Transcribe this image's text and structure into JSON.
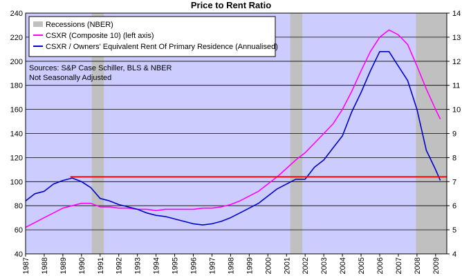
{
  "chart_data": {
    "type": "line",
    "title": "Price to Rent Ratio",
    "x_range": [
      1987,
      2009.6
    ],
    "x_ticks": [
      "1987",
      "1988",
      "1989",
      "1990",
      "1991",
      "1992",
      "1993",
      "1994",
      "1995",
      "1996",
      "1997",
      "1998",
      "1999",
      "2000",
      "2001",
      "2002",
      "2003",
      "2004",
      "2005",
      "2006",
      "2007",
      "2008",
      "2009"
    ],
    "left_axis": {
      "min": 40,
      "max": 240,
      "step": 20,
      "ticks": [
        "40",
        "60",
        "80",
        "100",
        "120",
        "140",
        "160",
        "180",
        "200",
        "220",
        "240"
      ]
    },
    "right_axis": {
      "min": 4,
      "max": 14,
      "step": 1,
      "ticks": [
        "4",
        "5",
        "6",
        "7",
        "8",
        "9",
        "10",
        "11",
        "12",
        "13",
        "14"
      ]
    },
    "recessions": [
      {
        "start": 1990.55,
        "end": 1991.2
      },
      {
        "start": 2001.2,
        "end": 2001.85
      },
      {
        "start": 2007.95,
        "end": 2009.6
      }
    ],
    "reference_line": {
      "value": 104,
      "axis": "left",
      "x_start": 1989.4,
      "x_end": 2009.6,
      "color": "#ff0000"
    },
    "series": [
      {
        "name": "CSXR (Composite 10) (left axis)",
        "color": "#ff00ff",
        "axis": "left",
        "points": [
          [
            1987.0,
            62
          ],
          [
            1987.5,
            66
          ],
          [
            1988.0,
            70
          ],
          [
            1988.5,
            74
          ],
          [
            1989.0,
            78
          ],
          [
            1989.5,
            80
          ],
          [
            1990.0,
            82
          ],
          [
            1990.5,
            82
          ],
          [
            1991.0,
            79
          ],
          [
            1991.5,
            79
          ],
          [
            1992.0,
            78
          ],
          [
            1992.5,
            78
          ],
          [
            1993.0,
            77
          ],
          [
            1993.5,
            77
          ],
          [
            1994.0,
            76
          ],
          [
            1994.5,
            77
          ],
          [
            1995.0,
            77
          ],
          [
            1995.5,
            77
          ],
          [
            1996.0,
            77
          ],
          [
            1996.5,
            78
          ],
          [
            1997.0,
            78
          ],
          [
            1997.5,
            79
          ],
          [
            1998.0,
            81
          ],
          [
            1998.5,
            84
          ],
          [
            1999.0,
            88
          ],
          [
            1999.5,
            92
          ],
          [
            2000.0,
            98
          ],
          [
            2000.5,
            104
          ],
          [
            2001.0,
            111
          ],
          [
            2001.5,
            118
          ],
          [
            2002.0,
            124
          ],
          [
            2002.5,
            132
          ],
          [
            2003.0,
            140
          ],
          [
            2003.5,
            148
          ],
          [
            2004.0,
            160
          ],
          [
            2004.5,
            175
          ],
          [
            2005.0,
            192
          ],
          [
            2005.5,
            208
          ],
          [
            2006.0,
            220
          ],
          [
            2006.5,
            226
          ],
          [
            2007.0,
            222
          ],
          [
            2007.5,
            214
          ],
          [
            2008.0,
            196
          ],
          [
            2008.5,
            177
          ],
          [
            2009.0,
            160
          ],
          [
            2009.25,
            152
          ]
        ]
      },
      {
        "name": "CSXR / Owners' Equivalent Rent Of Primary Residence (Annualised)",
        "color": "#0000cc",
        "axis": "right",
        "points": [
          [
            1987.0,
            6.2
          ],
          [
            1987.5,
            6.5
          ],
          [
            1988.0,
            6.6
          ],
          [
            1988.5,
            6.9
          ],
          [
            1989.0,
            7.05
          ],
          [
            1989.5,
            7.15
          ],
          [
            1990.0,
            7.0
          ],
          [
            1990.5,
            6.75
          ],
          [
            1991.0,
            6.3
          ],
          [
            1991.5,
            6.2
          ],
          [
            1992.0,
            6.05
          ],
          [
            1992.5,
            5.95
          ],
          [
            1993.0,
            5.85
          ],
          [
            1993.5,
            5.7
          ],
          [
            1994.0,
            5.6
          ],
          [
            1994.5,
            5.55
          ],
          [
            1995.0,
            5.45
          ],
          [
            1995.5,
            5.35
          ],
          [
            1996.0,
            5.25
          ],
          [
            1996.5,
            5.2
          ],
          [
            1997.0,
            5.25
          ],
          [
            1997.5,
            5.35
          ],
          [
            1998.0,
            5.5
          ],
          [
            1998.5,
            5.7
          ],
          [
            1999.0,
            5.9
          ],
          [
            1999.5,
            6.1
          ],
          [
            2000.0,
            6.4
          ],
          [
            2000.5,
            6.7
          ],
          [
            2001.0,
            6.9
          ],
          [
            2001.5,
            7.1
          ],
          [
            2002.0,
            7.1
          ],
          [
            2002.5,
            7.6
          ],
          [
            2003.0,
            7.9
          ],
          [
            2003.5,
            8.4
          ],
          [
            2004.0,
            8.9
          ],
          [
            2004.5,
            9.9
          ],
          [
            2005.0,
            10.7
          ],
          [
            2005.5,
            11.6
          ],
          [
            2006.0,
            12.4
          ],
          [
            2006.5,
            12.4
          ],
          [
            2007.0,
            11.8
          ],
          [
            2007.5,
            11.2
          ],
          [
            2008.0,
            10.0
          ],
          [
            2008.5,
            8.3
          ],
          [
            2009.0,
            7.5
          ],
          [
            2009.25,
            7.05
          ]
        ]
      }
    ],
    "legend": [
      {
        "label": "Recessions (NBER)",
        "kind": "box",
        "color": "#c0c0c0"
      },
      {
        "label": "CSXR (Composite 10) (left axis)",
        "kind": "line",
        "color": "#ff00ff"
      },
      {
        "label": "CSXR / Owners' Equivalent Rent Of Primary Residence (Annualised)",
        "kind": "line",
        "color": "#0000cc"
      }
    ],
    "annotation": [
      "Sources: S&P Case Schiller, BLS & NBER",
      "Not Seasonally Adjusted"
    ],
    "colors": {
      "plot_bg": "#ccccff",
      "recession": "#c0c0c0",
      "grid": "#000000"
    }
  }
}
